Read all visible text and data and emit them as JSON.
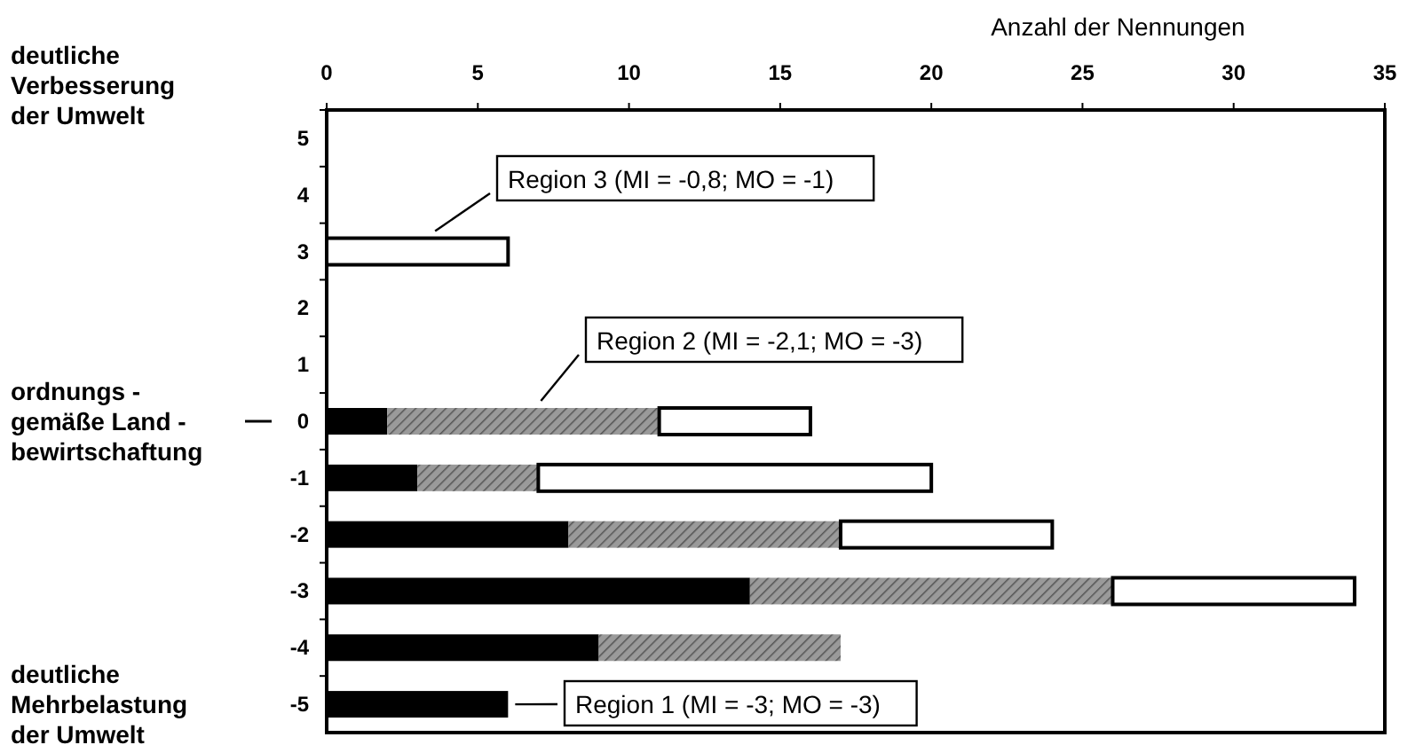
{
  "chart_data": {
    "type": "bar",
    "orientation": "horizontal",
    "stacked": true,
    "xlabel": "Anzahl der Nennungen",
    "categories": [
      "5",
      "4",
      "3",
      "2",
      "1",
      "0",
      "-1",
      "-2",
      "-3",
      "-4",
      "-5"
    ],
    "series": [
      {
        "name": "Region 1 (MI = -3; MO = -3)",
        "color": "#000000",
        "values": [
          0,
          0,
          0,
          0,
          0,
          2,
          3,
          8,
          14,
          9,
          6
        ]
      },
      {
        "name": "Region 2 (MI = -2,1; MO = -3)",
        "color": "#9a9a9a",
        "values": [
          0,
          0,
          0,
          0,
          0,
          9,
          4,
          9,
          12,
          8,
          0
        ]
      },
      {
        "name": "Region 3 (MI = -0,8; MO = -1)",
        "color": "#ffffff",
        "values": [
          0,
          0,
          6,
          0,
          0,
          5,
          13,
          7,
          8,
          0,
          0
        ]
      }
    ],
    "xlim": [
      0,
      35
    ],
    "xticks": [
      0,
      5,
      10,
      15,
      20,
      25,
      30,
      35
    ],
    "grid": false,
    "annotations": [
      "deutliche\nVerbesserung\nder Umwelt",
      "ordnungs -\ngemäße Land -\nbewirtschaftung",
      "deutliche\nMehrbelastung\nder Umwelt"
    ]
  }
}
